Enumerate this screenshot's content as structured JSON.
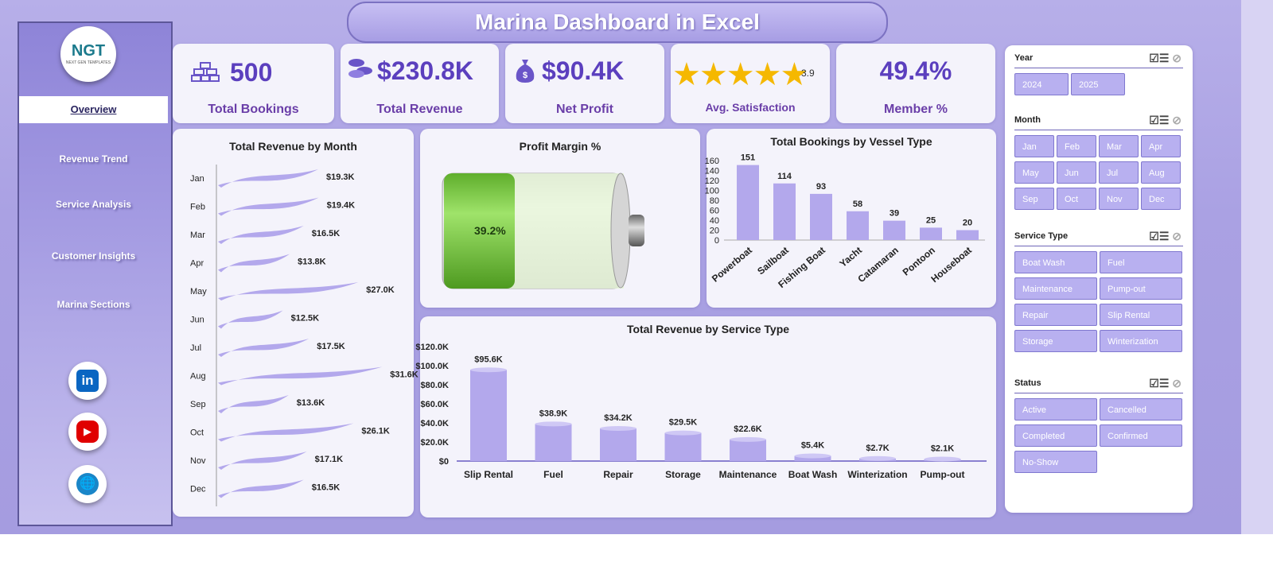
{
  "title": "Marina Dashboard in Excel",
  "logo": {
    "text": "NGT",
    "subtitle": "NEXT GEN TEMPLATES"
  },
  "nav": [
    {
      "label": "Overview",
      "active": true
    },
    {
      "label": "Revenue Trend"
    },
    {
      "label": "Service Analysis"
    },
    {
      "label": "Customer Insights"
    },
    {
      "label": "Marina Sections"
    }
  ],
  "social": [
    {
      "icon": "linkedin-icon",
      "color": "#0a66c2",
      "glyph": "in"
    },
    {
      "icon": "youtube-icon",
      "color": "#e00000",
      "glyph": "▶"
    },
    {
      "icon": "globe-icon",
      "color": "#1a86c8",
      "glyph": "🌐"
    }
  ],
  "kpis": {
    "bookings": {
      "value": "500",
      "label": "Total Bookings",
      "icon": "gold-bars-icon"
    },
    "revenue": {
      "value": "$230.8K",
      "label": "Total Revenue",
      "icon": "coins-icon"
    },
    "profit": {
      "value": "$90.4K",
      "label": "Net Profit",
      "icon": "money-bag-icon"
    },
    "satisfaction": {
      "value": "3.9",
      "label": "Avg. Satisfaction",
      "stars": 5,
      "icon": "star-icon"
    },
    "member": {
      "value": "49.4%",
      "label": "Member %"
    }
  },
  "colors": {
    "accent": "#5b3fbe",
    "bar": "#b3a8ec",
    "battery_green": "#7ed24a"
  },
  "charts": {
    "revenue_month": {
      "title": "Total Revenue by Month",
      "chart_data": {
        "type": "bar",
        "categories": [
          "Jan",
          "Feb",
          "Mar",
          "Apr",
          "May",
          "Jun",
          "Jul",
          "Aug",
          "Sep",
          "Oct",
          "Nov",
          "Dec"
        ],
        "values": [
          19.3,
          19.4,
          16.5,
          13.8,
          27.0,
          12.5,
          17.5,
          31.6,
          13.6,
          26.1,
          17.1,
          16.5
        ],
        "labels": [
          "$19.3K",
          "$19.4K",
          "$16.5K",
          "$13.8K",
          "$27.0K",
          "$12.5K",
          "$17.5K",
          "$31.6K",
          "$13.6K",
          "$26.1K",
          "$17.1K",
          "$16.5K"
        ],
        "xmax": 36
      }
    },
    "profit_margin": {
      "title": "Profit Margin %",
      "value_label": "39.2%",
      "value": 0.392
    },
    "vessel": {
      "title": "Total Bookings by Vessel Type",
      "chart_data": {
        "type": "bar",
        "categories": [
          "Powerboat",
          "Sailboat",
          "Fishing Boat",
          "Yacht",
          "Catamaran",
          "Pontoon",
          "Houseboat"
        ],
        "values": [
          151,
          114,
          93,
          58,
          39,
          25,
          20
        ],
        "yticks": [
          "0",
          "20",
          "40",
          "60",
          "80",
          "100",
          "120",
          "140",
          "160"
        ],
        "ylim": [
          0,
          160
        ]
      }
    },
    "service": {
      "title": "Total Revenue by Service Type",
      "chart_data": {
        "type": "bar",
        "categories": [
          "Slip Rental",
          "Fuel",
          "Repair",
          "Storage",
          "Maintenance",
          "Boat Wash",
          "Winterization",
          "Pump-out"
        ],
        "values": [
          95.6,
          38.9,
          34.2,
          29.5,
          22.6,
          5.4,
          2.7,
          2.1
        ],
        "labels": [
          "$95.6K",
          "$38.9K",
          "$34.2K",
          "$29.5K",
          "$22.6K",
          "$5.4K",
          "$2.7K",
          "$2.1K"
        ],
        "yticks": [
          "$0",
          "$20.0K",
          "$40.0K",
          "$60.0K",
          "$80.0K",
          "$100.0K",
          "$120.0K"
        ],
        "ylim": [
          0,
          120
        ]
      }
    }
  },
  "slicers": [
    {
      "title": "Year",
      "items": [
        "2024",
        "2025"
      ]
    },
    {
      "title": "Month",
      "items": [
        "Jan",
        "Feb",
        "Mar",
        "Apr",
        "May",
        "Jun",
        "Jul",
        "Aug",
        "Sep",
        "Oct",
        "Nov",
        "Dec"
      ]
    },
    {
      "title": "Service Type",
      "items": [
        "Boat Wash",
        "Fuel",
        "Maintenance",
        "Pump-out",
        "Repair",
        "Slip Rental",
        "Storage",
        "Winterization"
      ]
    },
    {
      "title": "Status",
      "items": [
        "Active",
        "Cancelled",
        "Completed",
        "Confirmed",
        "No-Show"
      ]
    }
  ],
  "slicer_icons": {
    "multiselect": "☑☰",
    "clear": "⊘"
  }
}
